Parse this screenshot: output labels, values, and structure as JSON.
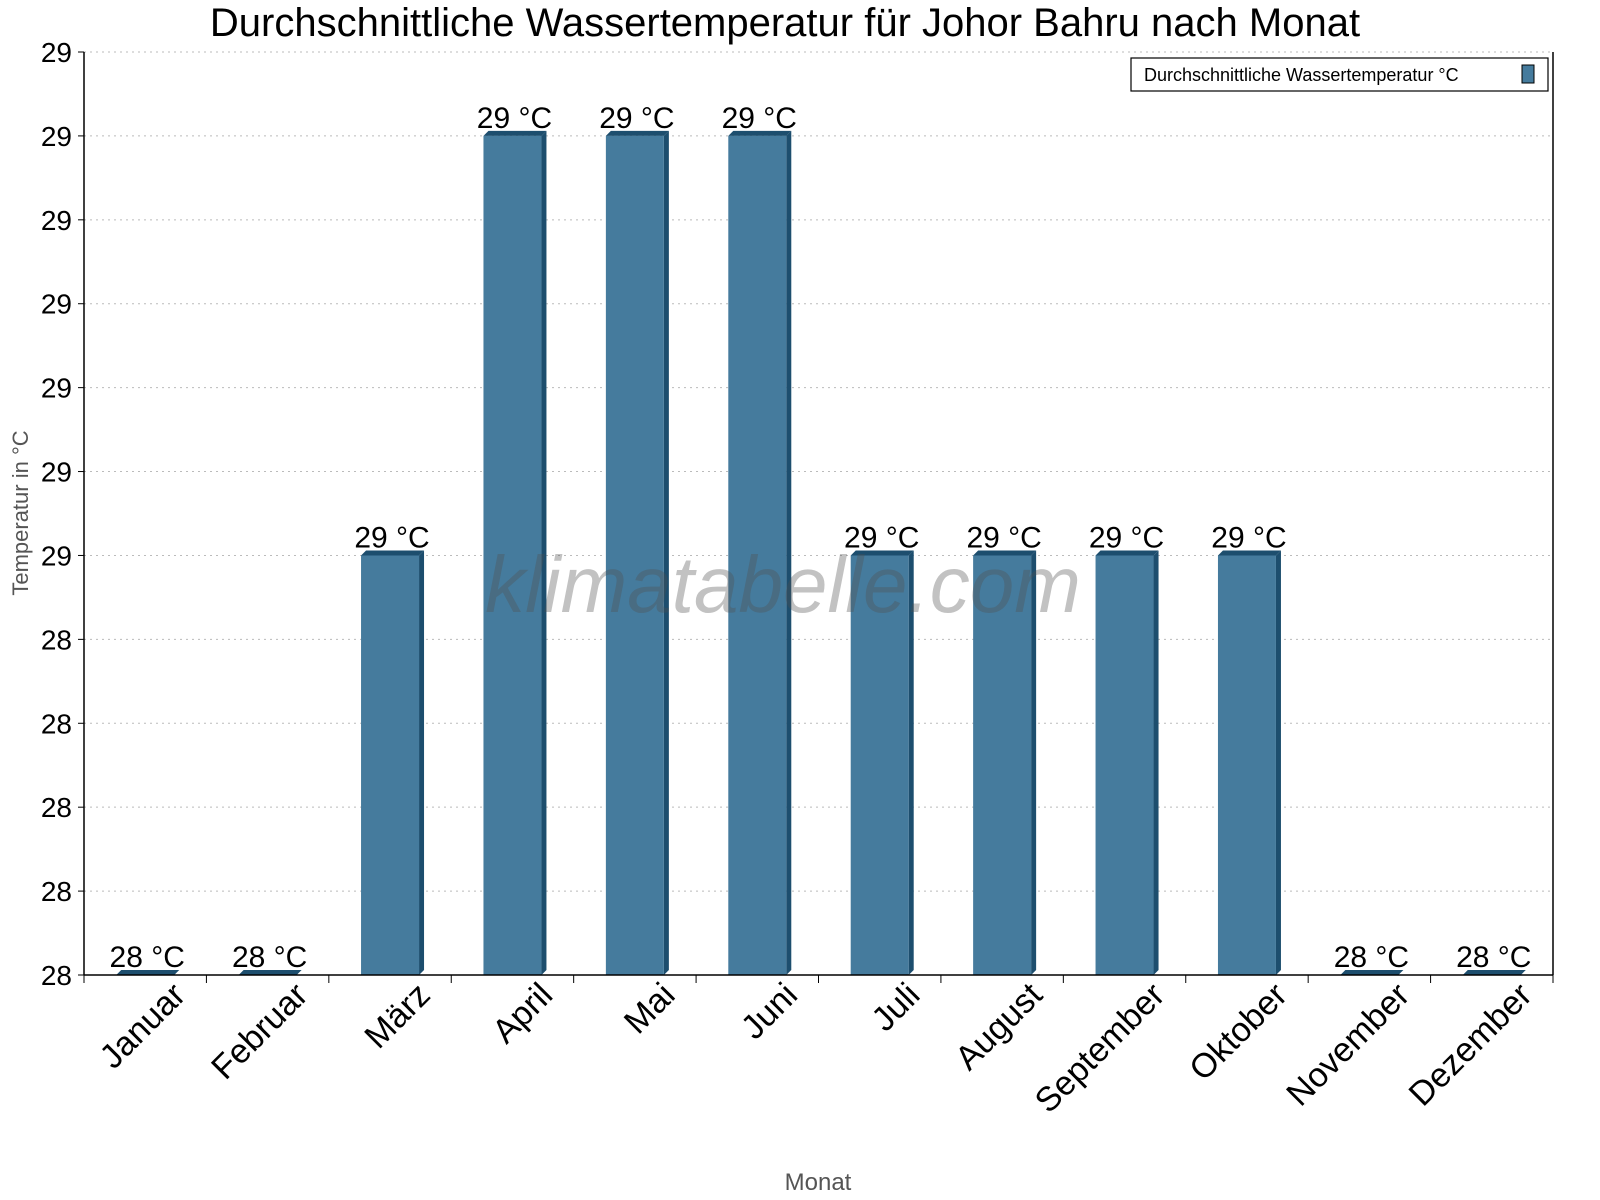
{
  "chart_data": {
    "type": "bar",
    "title": "Durchschnittliche Wassertemperatur für Johor Bahru nach Monat",
    "xlabel": "Monat",
    "ylabel": "Temperatur in °C",
    "categories": [
      "Januar",
      "Februar",
      "März",
      "April",
      "Mai",
      "Juni",
      "Juli",
      "August",
      "September",
      "Oktober",
      "November",
      "Dezember"
    ],
    "series": [
      {
        "name": "Durchschnittliche Wassertemperatur °C",
        "values": [
          28.0,
          28.0,
          28.5,
          29.0,
          29.0,
          29.0,
          28.5,
          28.5,
          28.5,
          28.5,
          28.0,
          28.0
        ],
        "labels": [
          "28 °C",
          "28 °C",
          "29 °C",
          "29 °C",
          "29 °C",
          "29 °C",
          "29 °C",
          "29 °C",
          "29 °C",
          "29 °C",
          "28 °C",
          "28 °C"
        ],
        "color": "#457b9d",
        "side_color": "#1d4e6e"
      }
    ],
    "ylim": [
      28.0,
      29.1
    ],
    "yticks": [
      28.0,
      28.1,
      28.2,
      28.3,
      28.4,
      28.5,
      28.6,
      28.7,
      28.8,
      28.9,
      29.0,
      29.1
    ],
    "ytick_labels": [
      "28",
      "28",
      "28",
      "28",
      "28",
      "29",
      "29",
      "29",
      "29",
      "29",
      "29",
      "29"
    ],
    "grid": true,
    "legend": "top-right",
    "watermark": "klimatabelle.com"
  }
}
